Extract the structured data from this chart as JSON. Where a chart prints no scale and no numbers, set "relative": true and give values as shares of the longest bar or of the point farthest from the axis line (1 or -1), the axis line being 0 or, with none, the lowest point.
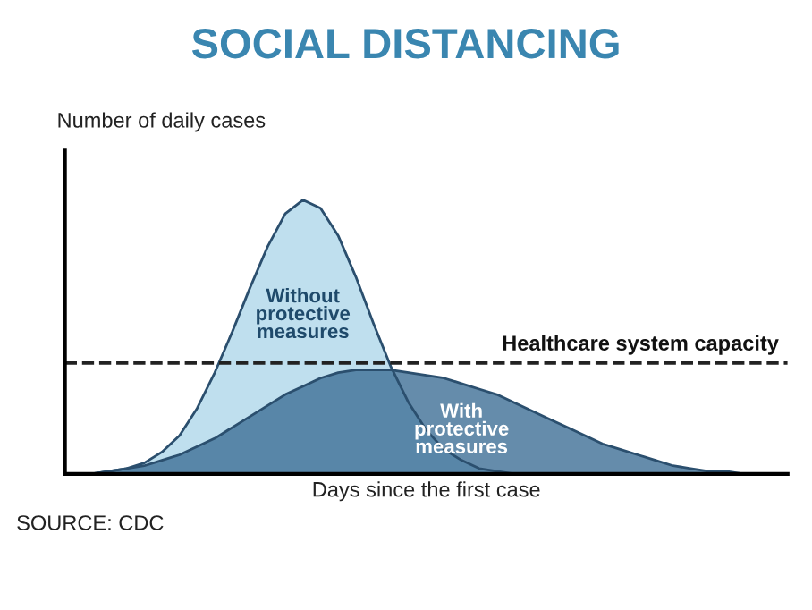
{
  "chart_data": {
    "type": "area",
    "relative": true,
    "title": "SOCIAL DISTANCING",
    "ylabel": "Number of daily cases",
    "xlabel": "Days since the first case",
    "categories": [
      null,
      null,
      null,
      null,
      null,
      null,
      null,
      null,
      null,
      null,
      null,
      null,
      null,
      null,
      null,
      null,
      null,
      null,
      null,
      null,
      null,
      null,
      null,
      null,
      null,
      null,
      null,
      null,
      null,
      null,
      null,
      null,
      null,
      null,
      null,
      null,
      null,
      null,
      null,
      null,
      null
    ],
    "series": [
      {
        "name": "Without protective measures",
        "color": "#a9d4e8",
        "values": [
          0,
          0,
          0.01,
          0.02,
          0.04,
          0.08,
          0.14,
          0.24,
          0.37,
          0.52,
          0.68,
          0.83,
          0.95,
          1.0,
          0.97,
          0.87,
          0.72,
          0.55,
          0.39,
          0.26,
          0.16,
          0.09,
          0.05,
          0.02,
          0.01,
          0,
          0,
          0,
          0,
          0,
          0,
          0,
          0,
          0,
          0,
          0,
          0,
          0,
          0,
          0,
          0
        ]
      },
      {
        "name": "With protective measures",
        "color": "#3f6f96",
        "values": [
          0,
          0,
          0.01,
          0.02,
          0.03,
          0.05,
          0.07,
          0.1,
          0.13,
          0.17,
          0.21,
          0.25,
          0.29,
          0.32,
          0.35,
          0.37,
          0.38,
          0.38,
          0.38,
          0.37,
          0.36,
          0.35,
          0.33,
          0.31,
          0.29,
          0.26,
          0.23,
          0.2,
          0.17,
          0.14,
          0.11,
          0.09,
          0.07,
          0.05,
          0.03,
          0.02,
          0.01,
          0.01,
          0,
          0,
          0
        ]
      }
    ],
    "ref_lines": [
      {
        "axis": "y",
        "value": 0.405,
        "label": "Healthcare system capacity",
        "line_style": "dashed",
        "color": "#222222"
      }
    ],
    "annotations": [
      "SOURCE: CDC"
    ],
    "legend": false
  }
}
